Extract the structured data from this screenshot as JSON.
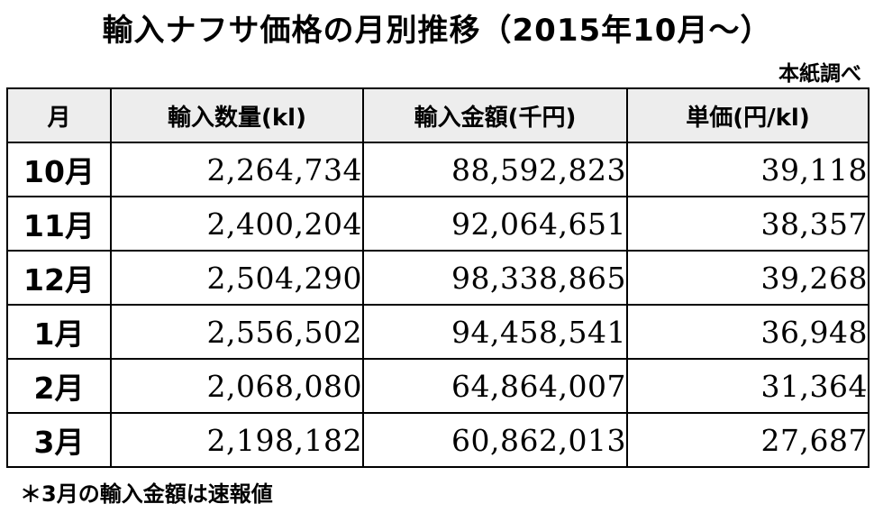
{
  "title": "輸入ナフサ価格の月別推移（2015年10月〜）",
  "source": "本紙調べ",
  "note": "＊3月の輸入金額は速報値",
  "chart_data": {
    "type": "table",
    "title": "輸入ナフサ価格の月別推移（2015年10月〜）",
    "columns": [
      "月",
      "輸入数量(kl)",
      "輸入金額(千円)",
      "単価(円/kl)"
    ],
    "rows": [
      {
        "month": "10月",
        "quantity": "2,264,734",
        "amount": "88,592,823",
        "unit_price": "39,118"
      },
      {
        "month": "11月",
        "quantity": "2,400,204",
        "amount": "92,064,651",
        "unit_price": "38,357"
      },
      {
        "month": "12月",
        "quantity": "2,504,290",
        "amount": "98,338,865",
        "unit_price": "39,268"
      },
      {
        "month": "1月",
        "quantity": "2,556,502",
        "amount": "94,458,541",
        "unit_price": "36,948"
      },
      {
        "month": "2月",
        "quantity": "2,068,080",
        "amount": "64,864,007",
        "unit_price": "31,364"
      },
      {
        "month": "3月",
        "quantity": "2,198,182",
        "amount": "60,862,013",
        "unit_price": "27,687"
      }
    ]
  }
}
